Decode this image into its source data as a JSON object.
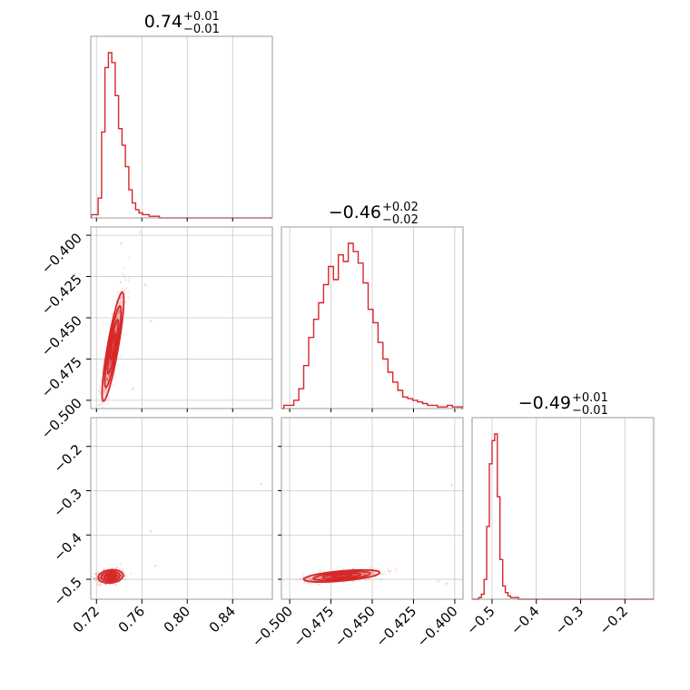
{
  "colors": {
    "accent": "#d62728",
    "grid": "#c8c8c8",
    "frame": "#9a9a9a"
  },
  "titles": [
    {
      "value": "0.74",
      "plus": "+0.01",
      "minus": "−0.01"
    },
    {
      "value": "−0.46",
      "plus": "+0.02",
      "minus": "−0.02"
    },
    {
      "value": "−0.49",
      "plus": "+0.01",
      "minus": "−0.01"
    }
  ],
  "chart_data": {
    "type": "corner",
    "grid": true,
    "parameters": [
      {
        "range": [
          0.715,
          0.875
        ],
        "ticks": [
          0.72,
          0.76,
          0.8,
          0.84
        ],
        "tick_labels": [
          "0.72",
          "0.76",
          "0.80",
          "0.84"
        ],
        "hist_centers": [
          0.717,
          0.72,
          0.723,
          0.726,
          0.729,
          0.732,
          0.735,
          0.738,
          0.741,
          0.744,
          0.747,
          0.75,
          0.753,
          0.756,
          0.759,
          0.762,
          0.765,
          0.768,
          0.771,
          0.774
        ],
        "hist_heights": [
          0.02,
          0.02,
          0.12,
          0.52,
          0.91,
          1.0,
          0.94,
          0.74,
          0.54,
          0.44,
          0.31,
          0.17,
          0.09,
          0.05,
          0.03,
          0.02,
          0.02,
          0.01,
          0.01,
          0.01
        ]
      },
      {
        "range": [
          -0.505,
          -0.395
        ],
        "ticks": [
          -0.5,
          -0.475,
          -0.45,
          -0.425,
          -0.4
        ],
        "tick_labels": [
          "−0.500",
          "−0.475",
          "−0.450",
          "−0.425",
          "−0.400"
        ],
        "hist_centers": [
          -0.502,
          -0.499,
          -0.496,
          -0.493,
          -0.49,
          -0.487,
          -0.484,
          -0.481,
          -0.478,
          -0.475,
          -0.472,
          -0.469,
          -0.466,
          -0.463,
          -0.46,
          -0.457,
          -0.454,
          -0.451,
          -0.448,
          -0.445,
          -0.442,
          -0.439,
          -0.436,
          -0.433,
          -0.43,
          -0.427,
          -0.424,
          -0.421,
          -0.418,
          -0.415,
          -0.412,
          -0.409,
          -0.406,
          -0.403,
          -0.4,
          -0.397
        ],
        "hist_heights": [
          0.02,
          0.02,
          0.05,
          0.12,
          0.26,
          0.43,
          0.54,
          0.64,
          0.75,
          0.86,
          0.78,
          0.93,
          0.89,
          1.0,
          0.95,
          0.88,
          0.76,
          0.6,
          0.52,
          0.4,
          0.3,
          0.22,
          0.16,
          0.11,
          0.07,
          0.06,
          0.05,
          0.04,
          0.03,
          0.02,
          0.02,
          0.01,
          0.01,
          0.02,
          0.01,
          0.01
        ]
      },
      {
        "range": [
          -0.545,
          -0.135
        ],
        "ticks": [
          -0.5,
          -0.4,
          -0.3,
          -0.2
        ],
        "tick_labels": [
          "−0.5",
          "−0.4",
          "−0.3",
          "−0.2"
        ],
        "hist_centers": [
          -0.527,
          -0.521,
          -0.515,
          -0.509,
          -0.503,
          -0.497,
          -0.491,
          -0.485,
          -0.479,
          -0.473,
          -0.467,
          -0.461,
          -0.455,
          -0.449,
          -0.443
        ],
        "hist_heights": [
          0.01,
          0.03,
          0.12,
          0.44,
          0.82,
          0.96,
          1.0,
          0.62,
          0.24,
          0.08,
          0.04,
          0.02,
          0.01,
          0.01,
          0.01
        ]
      }
    ],
    "pairs": [
      {
        "x": 0,
        "y": 1,
        "mean": [
          0.7345,
          -0.4675
        ],
        "sd": [
          0.0048,
          0.0165
        ],
        "rho": 0.86,
        "contour_levels": [
          0.5,
          1.0,
          1.5,
          2.0
        ],
        "outliers": [
          [
            0.758,
            -0.398
          ],
          [
            0.763,
            -0.43
          ],
          [
            0.752,
            -0.493
          ],
          [
            0.742,
            -0.405
          ],
          [
            0.768,
            -0.452
          ]
        ]
      },
      {
        "x": 0,
        "y": 2,
        "mean": [
          0.7325,
          -0.4935
        ],
        "sd": [
          0.0055,
          0.0075
        ],
        "rho": 0.15,
        "contour_levels": [
          0.5,
          1.0,
          1.5,
          2.0
        ],
        "outliers": [
          [
            0.768,
            -0.392
          ],
          [
            0.865,
            -0.285
          ],
          [
            0.772,
            -0.47
          ]
        ]
      },
      {
        "x": 1,
        "y": 2,
        "mean": [
          -0.4685,
          -0.4925
        ],
        "sd": [
          0.0115,
          0.0068
        ],
        "rho": 0.55,
        "contour_levels": [
          0.5,
          1.0,
          1.5,
          2.0
        ],
        "outliers": [
          [
            -0.402,
            -0.288
          ],
          [
            -0.405,
            -0.51
          ],
          [
            -0.41,
            -0.505
          ]
        ]
      }
    ]
  }
}
